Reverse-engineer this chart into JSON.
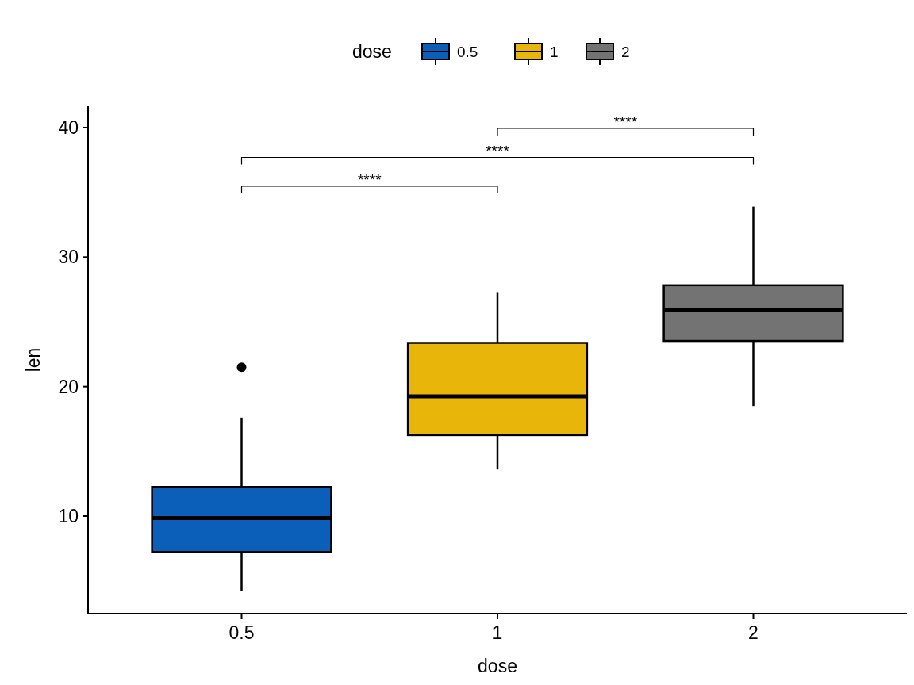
{
  "chart_data": {
    "type": "box",
    "xlabel": "dose",
    "ylabel": "len",
    "legend_title": "dose",
    "legend": "top",
    "categories": [
      "0.5",
      "1",
      "2"
    ],
    "series": [
      {
        "name": "0.5",
        "color": "#0c5fb9",
        "boxes": [
          {
            "low": 4.2,
            "q1": 7.225,
            "median": 9.85,
            "q3": 12.25,
            "high": 17.6,
            "outliers": [
              21.5
            ]
          },
          null,
          null
        ]
      },
      {
        "name": "1",
        "color": "#e8b60a",
        "boxes": [
          null,
          {
            "low": 13.6,
            "q1": 16.25,
            "median": 19.25,
            "q3": 23.375,
            "high": 27.3
          },
          null
        ]
      },
      {
        "name": "2",
        "color": "#737373",
        "boxes": [
          null,
          null,
          {
            "low": 18.5,
            "q1": 23.525,
            "median": 25.95,
            "q3": 27.825,
            "high": 33.9
          }
        ]
      }
    ],
    "ylim": [
      2.47,
      41.65
    ],
    "yticks": [
      10,
      20,
      30,
      40
    ],
    "annotations": [
      "****",
      "****",
      "****"
    ]
  }
}
